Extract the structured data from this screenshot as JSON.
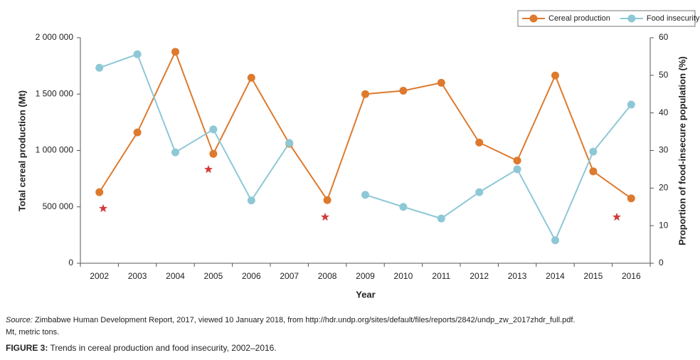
{
  "chart_data": {
    "type": "line",
    "x_label": "Year",
    "y_label": "Total cereal production (Mt)",
    "y2_label": "Proportion of food-insecure population (%)",
    "categories": [
      "2002",
      "2003",
      "2004",
      "2005",
      "2006",
      "2007",
      "2008",
      "2009",
      "2010",
      "2011",
      "2012",
      "2013",
      "2014",
      "2015",
      "2016"
    ],
    "series": [
      {
        "name": "Cereal production",
        "color": "#dd7a2e",
        "values": [
          630000,
          1160000,
          1875000,
          970000,
          1645000,
          1060000,
          560000,
          1500000,
          1530000,
          1600000,
          1070000,
          910000,
          1665000,
          815000,
          575000
        ]
      },
      {
        "name": "Food insecurity",
        "color": "#8ec8d6",
        "axis": "y2",
        "values": [
          52,
          55.6,
          29.5,
          35.6,
          16.7,
          32,
          null,
          18.2,
          15,
          11.9,
          18.9,
          25,
          6.1,
          29.7,
          42.2
        ]
      }
    ],
    "ylim": [
      0,
      2000000
    ],
    "yticks": [
      0,
      {
        "value": 500000,
        "label": "500 000"
      },
      {
        "value": 1000000,
        "label": "1 000 000"
      },
      {
        "value": 1500000,
        "label": "1 500 000"
      },
      {
        "value": 2000000,
        "label": "2 000 000"
      }
    ],
    "y2lim": [
      0,
      60
    ],
    "y2ticks": [
      0,
      10,
      20,
      30,
      40,
      50,
      60
    ],
    "legend": "top-right",
    "source_label": "Source:",
    "source": "Zimbabwe Human Development Report, 2017, viewed 10 January 2018, from http://hdr.undp.org/sites/default/files/reports/2842/undp_zw_2017zhdr_full.pdf.",
    "note": "Mt, metric tons.",
    "figure_label": "FIGURE 3:",
    "caption": "Trends in cereal production and food insecurity, 2002–2016."
  }
}
